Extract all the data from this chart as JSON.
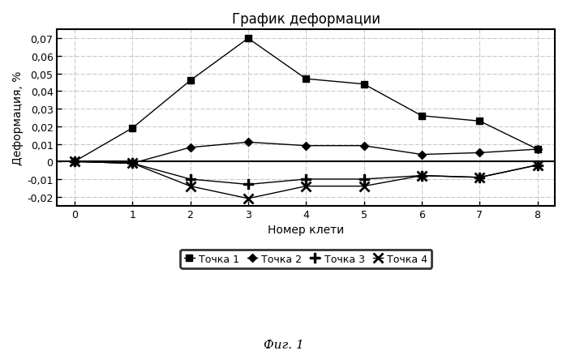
{
  "title": "График деформации",
  "xlabel": "Номер клети",
  "ylabel": "Деформация, %",
  "caption": "Фиг. 1",
  "x": [
    0,
    1,
    2,
    3,
    4,
    5,
    6,
    7,
    8
  ],
  "tochka1": [
    0.0,
    0.019,
    0.046,
    0.07,
    0.047,
    0.044,
    0.026,
    0.023,
    0.007
  ],
  "tochka2": [
    0.0,
    -0.001,
    0.008,
    0.011,
    0.009,
    0.009,
    0.004,
    0.005,
    0.007
  ],
  "tochka3": [
    0.0,
    -0.001,
    -0.01,
    -0.013,
    -0.01,
    -0.01,
    -0.008,
    -0.009,
    -0.002
  ],
  "tochka4": [
    0.0,
    -0.001,
    -0.014,
    -0.021,
    -0.014,
    -0.014,
    -0.008,
    -0.009,
    -0.002
  ],
  "ylim": [
    -0.025,
    0.075
  ],
  "yticks": [
    -0.02,
    -0.01,
    0.0,
    0.01,
    0.02,
    0.03,
    0.04,
    0.05,
    0.06,
    0.07
  ],
  "ytick_labels": [
    "-0,02",
    "-0,01",
    "0",
    "0,01",
    "0,02",
    "0,03",
    "0,04",
    "0,05",
    "0,06",
    "0,07"
  ],
  "legend_labels": [
    "Точка 1",
    "Точка 2",
    "Точка 3",
    "Точка 4"
  ],
  "background_color": "#ffffff",
  "grid_color": "#aaaaaa",
  "grid_linestyle": "-.",
  "grid_linewidth": 0.5
}
